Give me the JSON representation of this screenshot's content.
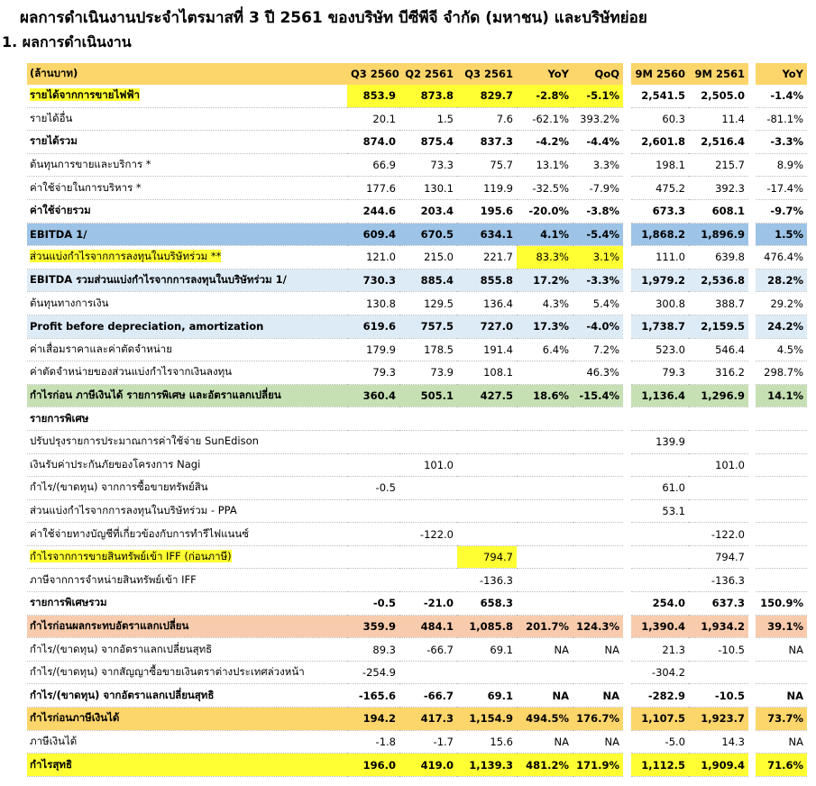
{
  "title": "ผลการดำเนินงานประจำไตรมาสที่ 3 ปี 2561 ของบริษัท บีซีพีจี จำกัด (มหาชน) และบริษัทย่อย",
  "section": "1.  ผลการดำเนินงาน",
  "table": {
    "header": [
      "(ล้านบาท)",
      "Q3 2560",
      "Q2 2561",
      "Q3 2561",
      "YoY",
      "QoQ",
      "9M 2560",
      "9M 2561",
      "YoY"
    ],
    "rows": [
      [
        "รายได้จากการขายไฟฟ้า",
        "853.9",
        "873.8",
        "829.7",
        "-2.8%",
        "-5.1%",
        "2,541.5",
        "2,505.0",
        "-1.4%"
      ],
      [
        "รายได้อื่น",
        "20.1",
        "1.5",
        "7.6",
        "-62.1%",
        "393.2%",
        "60.3",
        "11.4",
        "-81.1%"
      ],
      [
        "รายได้รวม",
        "874.0",
        "875.4",
        "837.3",
        "-4.2%",
        "-4.4%",
        "2,601.8",
        "2,516.4",
        "-3.3%"
      ],
      [
        "ต้นทุนการขายและบริการ *",
        "66.9",
        "73.3",
        "75.7",
        "13.1%",
        "3.3%",
        "198.1",
        "215.7",
        "8.9%"
      ],
      [
        "ค่าใช้จ่ายในการบริหาร *",
        "177.6",
        "130.1",
        "119.9",
        "-32.5%",
        "-7.9%",
        "475.2",
        "392.3",
        "-17.4%"
      ],
      [
        "ค่าใช้จ่ายรวม",
        "244.6",
        "203.4",
        "195.6",
        "-20.0%",
        "-3.8%",
        "673.3",
        "608.1",
        "-9.7%"
      ],
      [
        "EBITDA 1/",
        "609.4",
        "670.5",
        "634.1",
        "4.1%",
        "-5.4%",
        "1,868.2",
        "1,896.9",
        "1.5%"
      ],
      [
        "ส่วนแบ่งกำไรจากการลงทุนในบริษัทร่วม **",
        "121.0",
        "215.0",
        "221.7",
        "83.3%",
        "3.1%",
        "111.0",
        "639.8",
        "476.4%"
      ],
      [
        "EBITDA รวมส่วนแบ่งกำไรจากการลงทุนในบริษัทร่วม 1/",
        "730.3",
        "885.4",
        "855.8",
        "17.2%",
        "-3.3%",
        "1,979.2",
        "2,536.8",
        "28.2%"
      ],
      [
        "ต้นทุนทางการเงิน",
        "130.8",
        "129.5",
        "136.4",
        "4.3%",
        "5.4%",
        "300.8",
        "388.7",
        "29.2%"
      ],
      [
        "Profit before depreciation, amortization",
        "619.6",
        "757.5",
        "727.0",
        "17.3%",
        "-4.0%",
        "1,738.7",
        "2,159.5",
        "24.2%"
      ],
      [
        "ค่าเสื่อมราคาและค่าตัดจำหน่าย",
        "179.9",
        "178.5",
        "191.4",
        "6.4%",
        "7.2%",
        "523.0",
        "546.4",
        "4.5%"
      ],
      [
        "ค่าตัดจำหน่ายของส่วนแบ่งกำไรจากเงินลงทุน",
        "79.3",
        "73.9",
        "108.1",
        null,
        "46.3%",
        "79.3",
        "316.2",
        "298.7%"
      ],
      [
        "กำไรก่อน ภาษีเงินได้ รายการพิเศษ และอัตราแลกเปลี่ยน",
        "360.4",
        "505.1",
        "427.5",
        "18.6%",
        "-15.4%",
        "1,136.4",
        "1,296.9",
        "14.1%"
      ],
      [
        "รายการพิเศษ",
        null,
        null,
        null,
        null,
        null,
        null,
        null,
        null
      ],
      [
        "ปรับปรุงรายการประมาณการค่าใช้จ่าย SunEdison",
        null,
        null,
        null,
        null,
        null,
        "139.9",
        null,
        null
      ],
      [
        "เงินรับค่าประกันภัยของโครงการ Nagi",
        null,
        "101.0",
        null,
        null,
        null,
        null,
        "101.0",
        null
      ],
      [
        "กำไร/(ขาดทุน) จากการซื้อขายทรัพย์สิน",
        "-0.5",
        null,
        null,
        null,
        null,
        "61.0",
        null,
        null
      ],
      [
        "ส่วนแบ่งกำไรจากการลงทุนในบริษัทร่วม - PPA",
        null,
        null,
        null,
        null,
        null,
        "53.1",
        null,
        null
      ],
      [
        "ค่าใช้จ่ายทางบัญชีที่เกี่ยวข้องกับการทำรีไฟแนนซ์",
        null,
        "-122.0",
        null,
        null,
        null,
        null,
        "-122.0",
        null
      ],
      [
        "กำไรจากการขายสินทรัพย์เข้า IFF (ก่อนภาษี)",
        null,
        null,
        "794.7",
        null,
        null,
        null,
        "794.7",
        null
      ],
      [
        "ภาษีจากการจำหน่ายสินทรัพย์เข้า IFF",
        null,
        null,
        "-136.3",
        null,
        null,
        null,
        "-136.3",
        null
      ],
      [
        "รายการพิเศษรวม",
        "-0.5",
        "-21.0",
        "658.3",
        null,
        null,
        "254.0",
        "637.3",
        "150.9%"
      ],
      [
        "กำไรก่อนผลกระทบอัตราแลกเปลี่ยน",
        "359.9",
        "484.1",
        "1,085.8",
        "201.7%",
        "124.3%",
        "1,390.4",
        "1,934.2",
        "39.1%"
      ],
      [
        "กำไร/(ขาดทุน) จากอัตราแลกเปลี่ยนสุทธิ",
        "89.3",
        "-66.7",
        "69.1",
        "NA",
        "NA",
        "21.3",
        "-10.5",
        "NA"
      ],
      [
        "กำไร/(ขาดทุน) จากสัญญาซื้อขายเงินตราต่างประเทศล่วงหน้า",
        "-254.9",
        null,
        null,
        null,
        null,
        "-304.2",
        null,
        null
      ],
      [
        "กำไร/(ขาดทุน) จากอัตราแลกเปลี่ยนสุทธิ",
        "-165.6",
        "-66.7",
        "69.1",
        "NA",
        "NA",
        "-282.9",
        "-10.5",
        "NA"
      ],
      [
        "กำไรก่อนภาษีเงินได้",
        "194.2",
        "417.3",
        "1,154.9",
        "494.5%",
        "176.7%",
        "1,107.5",
        "1,923.7",
        "73.7%"
      ],
      [
        "ภาษีเงินได้",
        "-1.8",
        "-1.7",
        "15.6",
        "NA",
        "NA",
        "-5.0",
        "14.3",
        "NA"
      ],
      [
        "กำไรสุทธิ",
        "196.0",
        "419.0",
        "1,139.3",
        "481.2%",
        "171.9%",
        "1,112.5",
        "1,909.4",
        "71.6%"
      ]
    ]
  }
}
